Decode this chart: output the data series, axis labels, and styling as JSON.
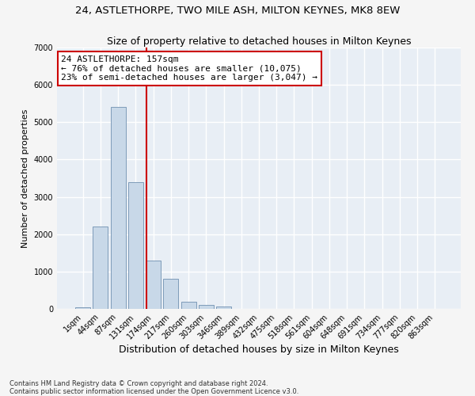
{
  "title1": "24, ASTLETHORPE, TWO MILE ASH, MILTON KEYNES, MK8 8EW",
  "title2": "Size of property relative to detached houses in Milton Keynes",
  "xlabel": "Distribution of detached houses by size in Milton Keynes",
  "ylabel": "Number of detached properties",
  "footnote": "Contains HM Land Registry data © Crown copyright and database right 2024.\nContains public sector information licensed under the Open Government Licence v3.0.",
  "categories": [
    "1sqm",
    "44sqm",
    "87sqm",
    "131sqm",
    "174sqm",
    "217sqm",
    "260sqm",
    "303sqm",
    "346sqm",
    "389sqm",
    "432sqm",
    "475sqm",
    "518sqm",
    "561sqm",
    "604sqm",
    "648sqm",
    "691sqm",
    "734sqm",
    "777sqm",
    "820sqm",
    "863sqm"
  ],
  "values": [
    50,
    2200,
    5400,
    3400,
    1300,
    800,
    200,
    100,
    60,
    10,
    5,
    2,
    1,
    0,
    0,
    0,
    0,
    0,
    0,
    0,
    0
  ],
  "bar_color": "#c8d8e8",
  "bar_edge_color": "#7090b0",
  "vline_color": "#cc0000",
  "annotation_text": "24 ASTLETHORPE: 157sqm\n← 76% of detached houses are smaller (10,075)\n23% of semi-detached houses are larger (3,047) →",
  "ylim": [
    0,
    7000
  ],
  "bg_color": "#e8eef5",
  "grid_color": "#ffffff",
  "fig_bg_color": "#f5f5f5",
  "title1_fontsize": 9.5,
  "title2_fontsize": 9,
  "xlabel_fontsize": 9,
  "ylabel_fontsize": 8,
  "tick_fontsize": 7,
  "annotation_fontsize": 8,
  "footnote_fontsize": 6
}
